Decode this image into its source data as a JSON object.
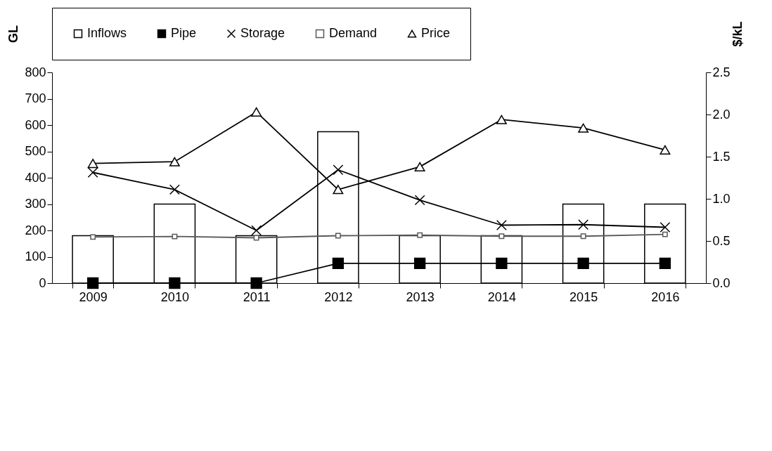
{
  "chart_data": {
    "type": "line",
    "categories": [
      "2009",
      "2010",
      "2011",
      "2012",
      "2013",
      "2014",
      "2015",
      "2016"
    ],
    "ylabel": "GL",
    "y2label": "$/kL",
    "ylim": [
      0,
      800
    ],
    "yticks": [
      0,
      100,
      200,
      300,
      400,
      500,
      600,
      700,
      800
    ],
    "y2lim": [
      0,
      2.5
    ],
    "y2ticks": [
      {
        "value": 0,
        "label": "0.0"
      },
      {
        "value": 0.5,
        "label": "0.5"
      },
      {
        "value": 1,
        "label": "1.0"
      },
      {
        "value": 1.5,
        "label": "1.5"
      },
      {
        "value": 2,
        "label": "2.0"
      },
      {
        "value": 2.5,
        "label": "2.5"
      }
    ],
    "legend": "top",
    "grid": false,
    "series": [
      {
        "name": "Inflows",
        "type": "bar",
        "color": "#ffffff",
        "values": [
          180,
          300,
          180,
          575,
          180,
          180,
          300,
          300
        ]
      },
      {
        "name": "Pipe",
        "marker": "square",
        "color": "#000000",
        "values": [
          0,
          0,
          0,
          75,
          75,
          75,
          75,
          75
        ]
      },
      {
        "name": "Storage",
        "marker": "cross",
        "color": "#000000",
        "values": [
          420,
          355,
          200,
          430,
          315,
          220,
          222,
          212
        ]
      },
      {
        "name": "Demand",
        "marker": "square",
        "color": "#595959",
        "values": [
          175,
          177,
          172,
          180,
          182,
          178,
          178,
          185
        ]
      },
      {
        "name": "Price",
        "marker": "triangle",
        "axis": "y2",
        "color": "#000000",
        "values": [
          1.42,
          1.44,
          2.03,
          1.11,
          1.38,
          1.94,
          1.84,
          1.58
        ]
      }
    ]
  }
}
